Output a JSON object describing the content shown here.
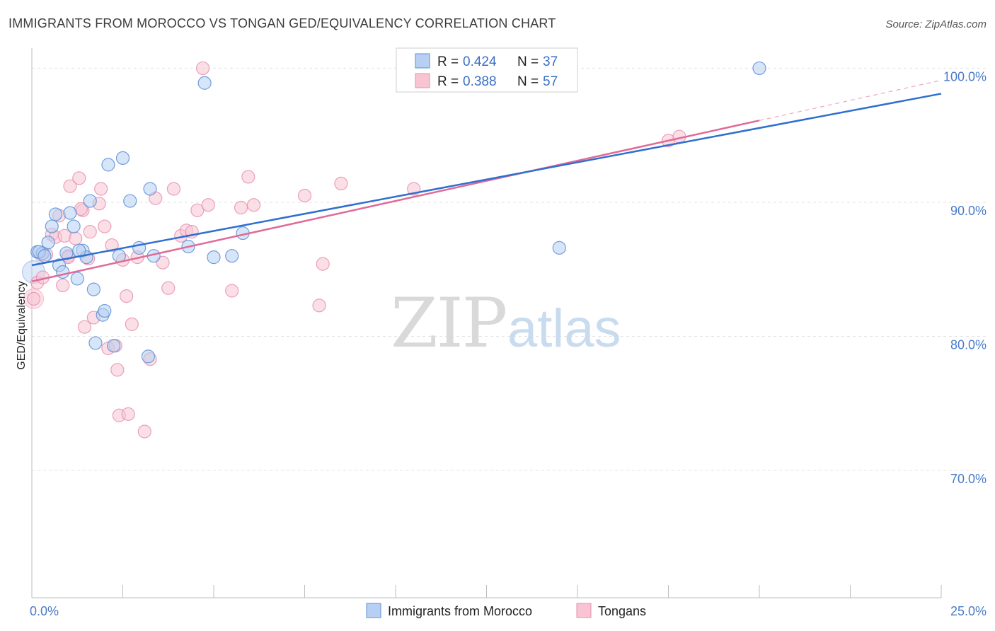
{
  "title": "IMMIGRANTS FROM MOROCCO VS TONGAN GED/EQUIVALENCY CORRELATION CHART",
  "source": "Source: ZipAtlas.com",
  "watermark": {
    "zip": "ZIP",
    "atlas": "atlas"
  },
  "colors": {
    "morocco_fill": "#b6cff2",
    "morocco_stroke": "#5b8fd6",
    "morocco_line": "#2f6fcf",
    "tongan_fill": "#f8c4d4",
    "tongan_stroke": "#e891ad",
    "tongan_line": "#e06a98",
    "grid": "#e3e3e3",
    "tick_text": "#4a7cc9"
  },
  "legend": {
    "rows": [
      {
        "r_label": "R =",
        "r_value": "0.424",
        "n_label": "N =",
        "n_value": "37"
      },
      {
        "r_label": "R =",
        "r_value": "0.388",
        "n_label": "N =",
        "n_value": "57"
      }
    ]
  },
  "bottom_legend": {
    "items": [
      {
        "label": "Immigrants from Morocco"
      },
      {
        "label": "Tongans"
      }
    ]
  },
  "chart_data": {
    "type": "scatter",
    "title": "IMMIGRANTS FROM MOROCCO VS TONGAN GED/EQUIVALENCY CORRELATION CHART",
    "xlabel": "",
    "ylabel": "GED/Equivalency",
    "xlim": [
      0,
      25
    ],
    "ylim": [
      60.5,
      101.5
    ],
    "x_tick_labels": [
      {
        "value": 0,
        "label": "0.0%"
      },
      {
        "value": 25,
        "label": "25.0%"
      }
    ],
    "y_tick_labels": [
      {
        "value": 100,
        "label": "100.0%"
      },
      {
        "value": 90,
        "label": "90.0%"
      },
      {
        "value": 80,
        "label": "80.0%"
      },
      {
        "value": 70,
        "label": "70.0%"
      }
    ],
    "grid": true,
    "legend_position": "top-center",
    "series": [
      {
        "name": "Immigrants from Morocco",
        "r": 0.424,
        "n": 37,
        "trend": {
          "x": [
            0,
            25
          ],
          "y": [
            85.3,
            98.1
          ]
        },
        "points": [
          {
            "x": 0.15,
            "y": 86.3
          },
          {
            "x": 0.3,
            "y": 86.2
          },
          {
            "x": 0.45,
            "y": 87.0
          },
          {
            "x": 0.55,
            "y": 88.2
          },
          {
            "x": 0.65,
            "y": 89.1
          },
          {
            "x": 0.75,
            "y": 85.3
          },
          {
            "x": 0.85,
            "y": 84.8
          },
          {
            "x": 0.95,
            "y": 86.2
          },
          {
            "x": 1.05,
            "y": 89.2
          },
          {
            "x": 1.15,
            "y": 88.2
          },
          {
            "x": 1.25,
            "y": 84.3
          },
          {
            "x": 1.4,
            "y": 86.4
          },
          {
            "x": 1.5,
            "y": 85.9
          },
          {
            "x": 1.6,
            "y": 90.1
          },
          {
            "x": 1.7,
            "y": 83.5
          },
          {
            "x": 1.75,
            "y": 79.5
          },
          {
            "x": 1.95,
            "y": 81.6
          },
          {
            "x": 2.0,
            "y": 81.9
          },
          {
            "x": 2.1,
            "y": 92.8
          },
          {
            "x": 2.25,
            "y": 79.3
          },
          {
            "x": 2.4,
            "y": 86.0
          },
          {
            "x": 2.5,
            "y": 93.3
          },
          {
            "x": 2.7,
            "y": 90.1
          },
          {
            "x": 2.95,
            "y": 86.6
          },
          {
            "x": 3.2,
            "y": 78.5
          },
          {
            "x": 3.25,
            "y": 91.0
          },
          {
            "x": 3.35,
            "y": 86.0
          },
          {
            "x": 4.3,
            "y": 86.7
          },
          {
            "x": 4.75,
            "y": 98.9
          },
          {
            "x": 5.0,
            "y": 85.9
          },
          {
            "x": 5.5,
            "y": 86.0
          },
          {
            "x": 5.8,
            "y": 87.7
          },
          {
            "x": 14.5,
            "y": 86.6
          },
          {
            "x": 20.0,
            "y": 100.0
          },
          {
            "x": 0.2,
            "y": 86.3
          },
          {
            "x": 0.35,
            "y": 86.0
          },
          {
            "x": 1.3,
            "y": 86.4
          }
        ]
      },
      {
        "name": "Tongans",
        "r": 0.388,
        "n": 57,
        "trend": {
          "x": [
            0,
            20
          ],
          "y": [
            84.1,
            96.1
          ]
        },
        "points": [
          {
            "x": 0.05,
            "y": 82.8
          },
          {
            "x": 0.15,
            "y": 84.0
          },
          {
            "x": 0.3,
            "y": 84.4
          },
          {
            "x": 0.4,
            "y": 86.1
          },
          {
            "x": 0.55,
            "y": 87.6
          },
          {
            "x": 0.65,
            "y": 87.4
          },
          {
            "x": 0.75,
            "y": 89.0
          },
          {
            "x": 0.85,
            "y": 83.8
          },
          {
            "x": 0.9,
            "y": 87.5
          },
          {
            "x": 1.0,
            "y": 86.0
          },
          {
            "x": 1.05,
            "y": 91.2
          },
          {
            "x": 1.2,
            "y": 87.3
          },
          {
            "x": 1.3,
            "y": 91.8
          },
          {
            "x": 1.4,
            "y": 89.4
          },
          {
            "x": 1.45,
            "y": 80.7
          },
          {
            "x": 1.55,
            "y": 85.8
          },
          {
            "x": 1.6,
            "y": 87.8
          },
          {
            "x": 1.7,
            "y": 81.4
          },
          {
            "x": 1.85,
            "y": 89.9
          },
          {
            "x": 1.9,
            "y": 91.0
          },
          {
            "x": 2.0,
            "y": 88.2
          },
          {
            "x": 2.1,
            "y": 79.1
          },
          {
            "x": 2.2,
            "y": 86.8
          },
          {
            "x": 2.3,
            "y": 79.3
          },
          {
            "x": 2.35,
            "y": 77.5
          },
          {
            "x": 2.4,
            "y": 74.1
          },
          {
            "x": 2.5,
            "y": 85.7
          },
          {
            "x": 2.6,
            "y": 83.0
          },
          {
            "x": 2.65,
            "y": 74.2
          },
          {
            "x": 2.75,
            "y": 80.9
          },
          {
            "x": 2.9,
            "y": 85.9
          },
          {
            "x": 3.1,
            "y": 72.9
          },
          {
            "x": 3.25,
            "y": 78.3
          },
          {
            "x": 3.4,
            "y": 90.3
          },
          {
            "x": 3.6,
            "y": 85.5
          },
          {
            "x": 3.75,
            "y": 83.6
          },
          {
            "x": 3.9,
            "y": 91.0
          },
          {
            "x": 4.1,
            "y": 87.5
          },
          {
            "x": 4.25,
            "y": 87.9
          },
          {
            "x": 4.55,
            "y": 89.4
          },
          {
            "x": 4.7,
            "y": 100.0
          },
          {
            "x": 4.85,
            "y": 89.8
          },
          {
            "x": 5.5,
            "y": 83.4
          },
          {
            "x": 5.75,
            "y": 89.6
          },
          {
            "x": 5.95,
            "y": 91.9
          },
          {
            "x": 6.1,
            "y": 89.8
          },
          {
            "x": 7.5,
            "y": 90.5
          },
          {
            "x": 7.9,
            "y": 82.3
          },
          {
            "x": 8.0,
            "y": 85.4
          },
          {
            "x": 8.5,
            "y": 91.4
          },
          {
            "x": 10.5,
            "y": 91.0
          },
          {
            "x": 17.5,
            "y": 94.6
          },
          {
            "x": 17.8,
            "y": 94.9
          },
          {
            "x": 4.4,
            "y": 87.8
          },
          {
            "x": 1.35,
            "y": 89.5
          },
          {
            "x": 0.25,
            "y": 86.1
          },
          {
            "x": 1.0,
            "y": 85.9
          }
        ]
      }
    ]
  }
}
